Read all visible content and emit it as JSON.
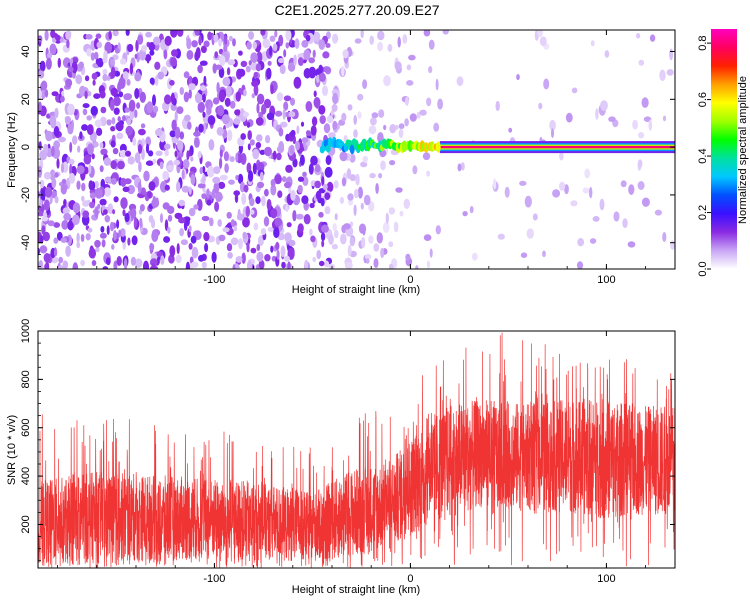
{
  "title": "C2E1.2025.277.20.09.E27",
  "chart_data": [
    {
      "type": "heatmap",
      "name": "spectrogram",
      "xlabel": "Height of straight line (km)",
      "ylabel": "Frequency (Hz)",
      "xlim": [
        -190,
        135
      ],
      "ylim": [
        -51,
        49
      ],
      "xticks": [
        -100,
        0,
        100
      ],
      "yticks": [
        -40,
        -20,
        0,
        20,
        40
      ],
      "colorbar": {
        "label": "Normalized spectral amplitude",
        "range": [
          0.0,
          0.85
        ],
        "ticks": [
          0.0,
          0.2,
          0.4,
          0.6,
          0.8
        ],
        "colormap": [
          "#ffffff",
          "#c9a6f5",
          "#8a2be2",
          "#3a10ff",
          "#0050ff",
          "#00c8ff",
          "#00e0a0",
          "#00ff00",
          "#a0ff00",
          "#ffff00",
          "#ffa000",
          "#ff2000",
          "#ff0060",
          "#ff00c0"
        ]
      },
      "features": {
        "noise_region_x": [
          -190,
          -40
        ],
        "transition_x": [
          -40,
          15
        ],
        "signal_line_freq_hz": 0,
        "signal_start_x": -45,
        "signal_peak_amplitude": 0.8
      }
    },
    {
      "type": "line",
      "name": "snr",
      "xlabel": "Height of straight line (km)",
      "ylabel": "SNR (10 * v/v)",
      "xlim": [
        -190,
        135
      ],
      "ylim": [
        20,
        1000
      ],
      "xticks": [
        -100,
        0,
        100
      ],
      "yticks": [
        200,
        400,
        600,
        800,
        1000
      ],
      "color": "#f03333",
      "envelope": {
        "x": [
          -190,
          -160,
          -120,
          -80,
          -50,
          -30,
          -10,
          0,
          10,
          20,
          40,
          60,
          80,
          100,
          120,
          135
        ],
        "lower": [
          40,
          40,
          50,
          50,
          45,
          60,
          110,
          150,
          200,
          230,
          280,
          250,
          250,
          220,
          240,
          230
        ],
        "upper": [
          380,
          420,
          400,
          380,
          330,
          430,
          470,
          560,
          650,
          700,
          720,
          700,
          720,
          720,
          690,
          700
        ],
        "spike_max": [
          660,
          640,
          630,
          560,
          520,
          640,
          720,
          780,
          850,
          900,
          1000,
          990,
          900,
          900,
          880,
          840
        ]
      }
    }
  ]
}
